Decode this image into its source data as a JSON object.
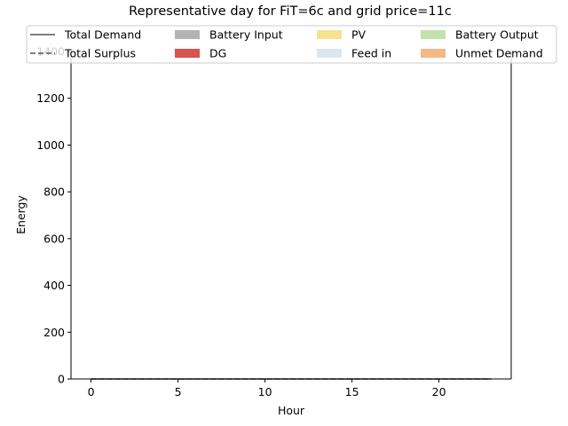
{
  "chart_data": {
    "type": "area",
    "title": "Representative day for FiT=6c and grid price=11c",
    "xlabel": "Hour",
    "ylabel": "Energy",
    "xlim": [
      -1.15,
      24.15
    ],
    "ylim": [
      0,
      1400
    ],
    "xticks": [
      0,
      5,
      10,
      15,
      20
    ],
    "yticks": [
      0,
      200,
      400,
      600,
      800,
      1000,
      1200,
      1400
    ],
    "grid": false,
    "legend_position": "top",
    "x": [
      0,
      1,
      2,
      3,
      4,
      5,
      6,
      7,
      8,
      9,
      10,
      11,
      12,
      13,
      14,
      15,
      16,
      17,
      18,
      19,
      20,
      21,
      22,
      23
    ],
    "series": [
      {
        "name": "Total Demand",
        "kind": "line",
        "style": "solid",
        "color": "#555555",
        "values": [
          0,
          0,
          0,
          0,
          0,
          0,
          0,
          0,
          0,
          0,
          0,
          0,
          0,
          0,
          0,
          0,
          0,
          0,
          0,
          0,
          0,
          0,
          0,
          0
        ]
      },
      {
        "name": "Total Surplus",
        "kind": "line",
        "style": "dashed",
        "color": "#555555",
        "values": [
          0,
          0,
          0,
          0,
          0,
          0,
          0,
          0,
          0,
          0,
          0,
          0,
          0,
          0,
          0,
          0,
          0,
          0,
          0,
          0,
          0,
          0,
          0,
          0
        ]
      },
      {
        "name": "Battery Input",
        "kind": "area",
        "color": "#b3b3b3",
        "values": [
          0,
          0,
          0,
          0,
          0,
          0,
          0,
          0,
          0,
          0,
          0,
          0,
          0,
          0,
          0,
          0,
          0,
          0,
          0,
          0,
          0,
          0,
          0,
          0
        ]
      },
      {
        "name": "DG",
        "kind": "area",
        "color": "#d9534f",
        "values": [
          0,
          0,
          0,
          0,
          0,
          0,
          0,
          0,
          0,
          0,
          0,
          0,
          0,
          0,
          0,
          0,
          0,
          0,
          0,
          0,
          0,
          0,
          0,
          0
        ]
      },
      {
        "name": "PV",
        "kind": "area",
        "color": "#f7e38e",
        "values": [
          0,
          0,
          0,
          0,
          0,
          0,
          0,
          0,
          0,
          0,
          0,
          0,
          0,
          0,
          0,
          0,
          0,
          0,
          0,
          0,
          0,
          0,
          0,
          0
        ]
      },
      {
        "name": "Feed in",
        "kind": "area",
        "color": "#dce6f0",
        "values": [
          0,
          0,
          0,
          0,
          0,
          0,
          0,
          0,
          0,
          0,
          0,
          0,
          0,
          0,
          0,
          0,
          0,
          0,
          0,
          0,
          0,
          0,
          0,
          0
        ]
      },
      {
        "name": "Battery Output",
        "kind": "area",
        "color": "#c2e2ab",
        "values": [
          0,
          0,
          0,
          0,
          0,
          0,
          0,
          0,
          0,
          0,
          0,
          0,
          0,
          0,
          0,
          0,
          0,
          0,
          0,
          0,
          0,
          0,
          0,
          0
        ]
      },
      {
        "name": "Unmet Demand",
        "kind": "area",
        "color": "#f5b785",
        "values": [
          0,
          0,
          0,
          0,
          0,
          0,
          0,
          0,
          0,
          0,
          0,
          0,
          0,
          0,
          0,
          0,
          0,
          0,
          0,
          0,
          0,
          0,
          0,
          0
        ]
      }
    ]
  }
}
